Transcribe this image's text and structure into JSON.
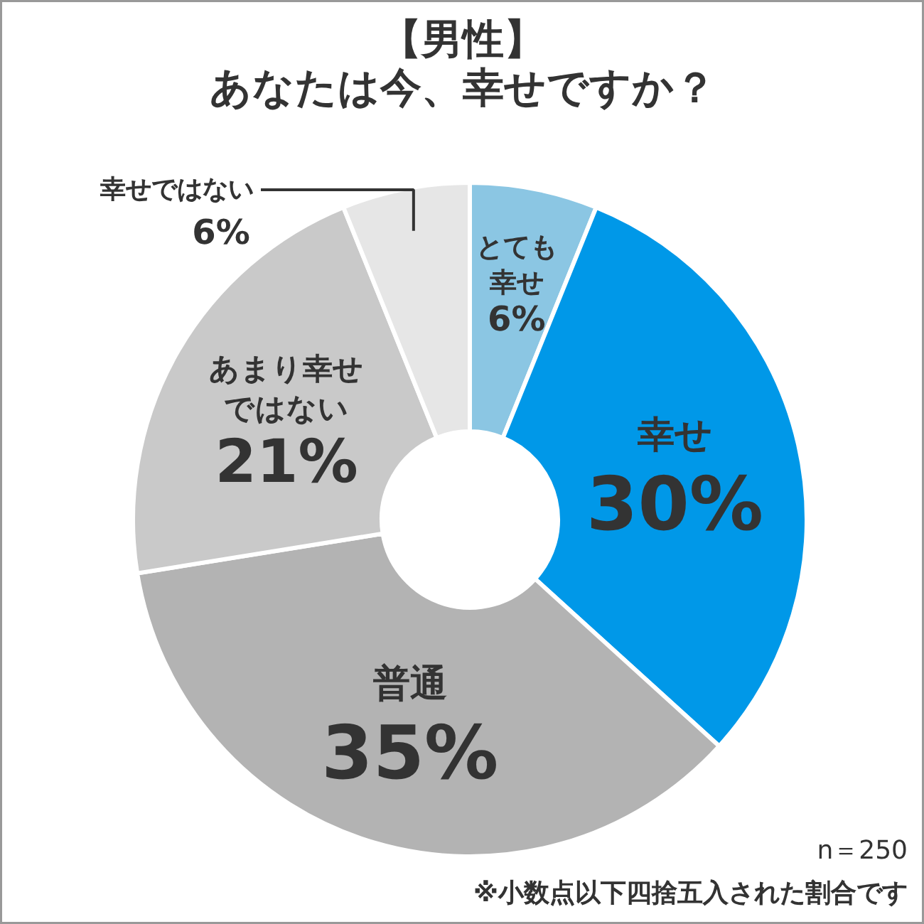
{
  "chart_data": {
    "type": "donut",
    "title": "【男性】",
    "subtitle": "あなたは今、幸せですか？",
    "categories": [
      "とても幸せ",
      "幸せ",
      "普通",
      "あまり幸せではない",
      "幸せではない"
    ],
    "values": [
      6,
      30,
      35,
      21,
      6
    ],
    "colors": [
      "#8bc6e3",
      "#0098e8",
      "#b3b3b3",
      "#c9c9c9",
      "#e6e6e6"
    ],
    "value_labels": [
      "6%",
      "30%",
      "35%",
      "21%",
      "6%"
    ],
    "annotations": [
      "n＝250",
      "※小数点以下四捨五入された割合です"
    ]
  }
}
